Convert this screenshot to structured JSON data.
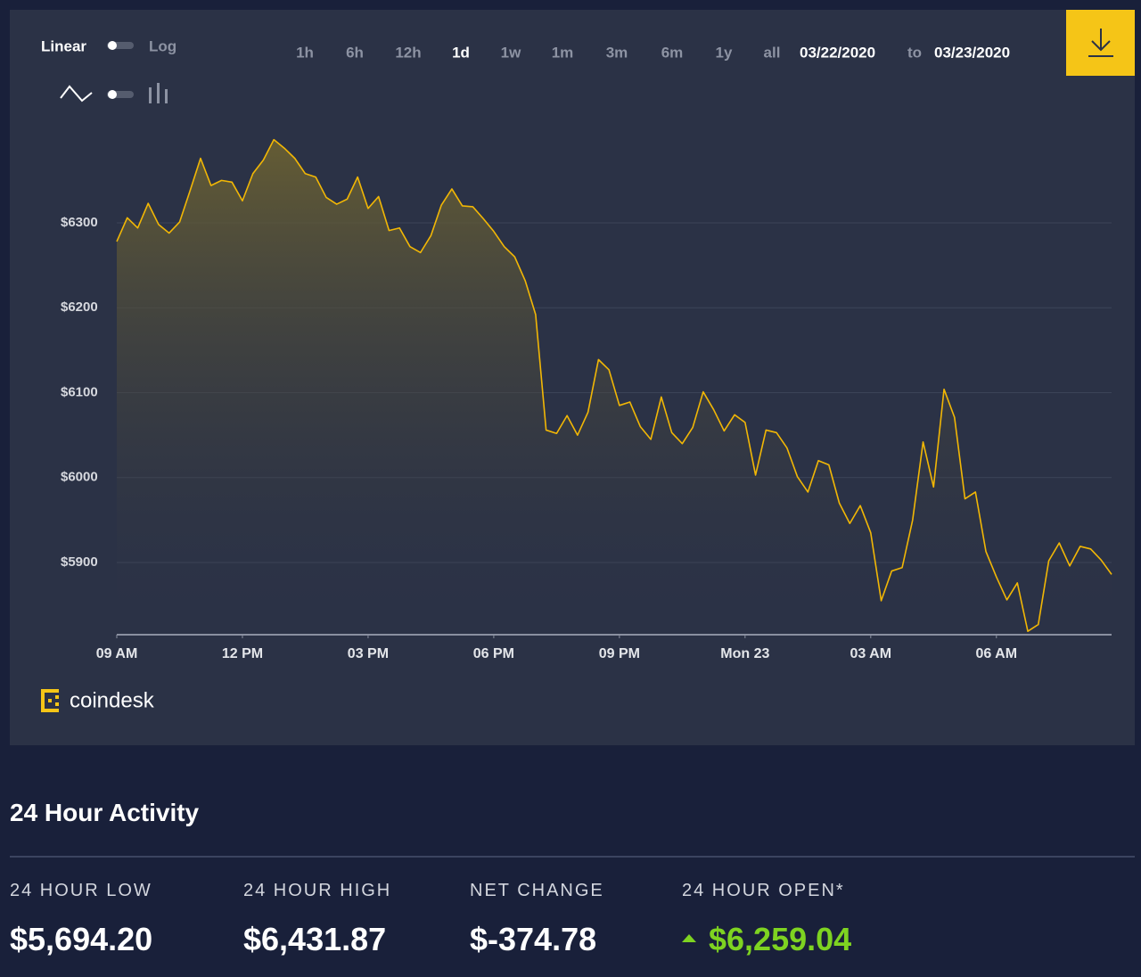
{
  "controls": {
    "scale_linear": "Linear",
    "scale_log": "Log",
    "ranges": [
      "1h",
      "6h",
      "12h",
      "1d",
      "1w",
      "1m",
      "3m",
      "6m",
      "1y",
      "all"
    ],
    "active_range": 3,
    "date_from": "03/22/2020",
    "date_sep": "to",
    "date_to": "03/23/2020"
  },
  "chart_data": {
    "type": "line",
    "color": "#f2b705",
    "grid": true,
    "x": [
      0,
      0.25,
      0.5,
      0.75,
      1,
      1.25,
      1.5,
      1.75,
      2,
      2.25,
      2.5,
      2.75,
      3,
      3.25,
      3.5,
      3.75,
      4,
      4.25,
      4.5,
      4.75,
      5,
      5.25,
      5.5,
      5.75,
      6,
      6.25,
      6.5,
      6.75,
      7,
      7.25,
      7.5,
      7.75,
      8,
      8.25,
      8.5,
      8.75,
      9,
      9.25,
      9.5,
      9.75,
      10,
      10.25,
      10.5,
      10.75,
      11,
      11.25,
      11.5,
      11.75,
      12,
      12.25,
      12.5,
      12.75,
      13,
      13.25,
      13.5,
      13.75,
      14,
      14.25,
      14.5,
      14.75,
      15,
      15.25,
      15.5,
      15.75,
      16,
      16.25,
      16.5,
      16.75,
      17,
      17.25,
      17.5,
      17.75,
      18,
      18.25,
      18.5,
      18.75,
      19,
      19.25,
      19.5,
      19.75,
      20,
      20.25,
      20.5,
      20.75,
      21,
      21.25,
      21.5,
      21.75,
      22,
      22.25,
      22.5,
      22.75,
      23,
      23.25,
      23.5,
      23.75
    ],
    "values": [
      6278,
      6306,
      6294,
      6323,
      6298,
      6288,
      6301,
      6338,
      6376,
      6344,
      6350,
      6348,
      6326,
      6358,
      6374,
      6398,
      6388,
      6376,
      6358,
      6354,
      6330,
      6322,
      6328,
      6354,
      6317,
      6331,
      6291,
      6294,
      6272,
      6265,
      6285,
      6321,
      6340,
      6320,
      6319,
      6305,
      6290,
      6272,
      6260,
      6232,
      6192,
      6056,
      6052,
      6073,
      6050,
      6077,
      6139,
      6127,
      6085,
      6089,
      6060,
      6045,
      6095,
      6053,
      6040,
      6059,
      6101,
      6080,
      6055,
      6074,
      6065,
      6003,
      6056,
      6053,
      6035,
      6001,
      5983,
      6020,
      6015,
      5970,
      5946,
      5967,
      5935,
      5855,
      5890,
      5894,
      5950,
      6042,
      5989,
      6104,
      6071,
      5975,
      5983,
      5913,
      5883,
      5856,
      5876,
      5819,
      5827,
      5902,
      5923,
      5896,
      5919,
      5916,
      5903,
      5886
    ],
    "xlim": [
      0,
      23.75
    ],
    "xticks": [
      {
        "value": 0,
        "label": "09 AM"
      },
      {
        "value": 3,
        "label": "12 PM"
      },
      {
        "value": 6,
        "label": "03 PM"
      },
      {
        "value": 9,
        "label": "06 PM"
      },
      {
        "value": 12,
        "label": "09 PM"
      },
      {
        "value": 15,
        "label": "Mon 23"
      },
      {
        "value": 18,
        "label": "03 AM"
      },
      {
        "value": 21,
        "label": "06 AM"
      }
    ],
    "ylim": [
      5815,
      6426
    ],
    "yticks": [
      {
        "value": 5900,
        "label": "$5900"
      },
      {
        "value": 6000,
        "label": "$6000"
      },
      {
        "value": 6100,
        "label": "$6100"
      },
      {
        "value": 6200,
        "label": "$6200"
      },
      {
        "value": 6300,
        "label": "$6300"
      }
    ]
  },
  "brand": "coindesk",
  "activity": {
    "title": "24 Hour Activity",
    "stats": [
      {
        "label": "24 HOUR LOW",
        "value": "$5,694.20"
      },
      {
        "label": "24 HOUR HIGH",
        "value": "$6,431.87"
      },
      {
        "label": "NET CHANGE",
        "value": "$-374.78"
      },
      {
        "label": "24 HOUR OPEN*",
        "value": "$6,259.04"
      }
    ]
  }
}
